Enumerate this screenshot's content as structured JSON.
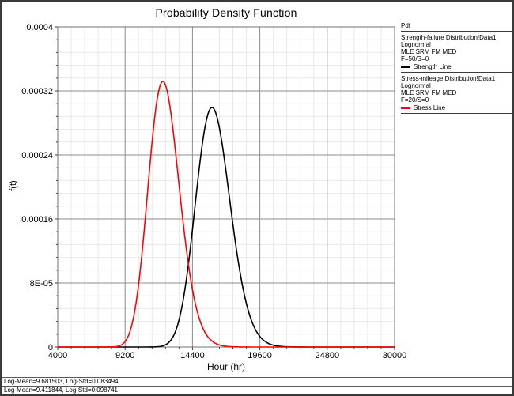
{
  "window": {
    "title": "Probability Density Function"
  },
  "chart_data": {
    "type": "line",
    "title": "Probability Density Function",
    "xlabel": "Hour (hr)",
    "ylabel": "f(t)",
    "xlim": [
      4000,
      30000
    ],
    "ylim": [
      0,
      0.0004
    ],
    "x_ticks": [
      4000,
      9200,
      14400,
      19600,
      24800,
      30000
    ],
    "x_tick_labels": [
      "4000",
      "9200",
      "14400",
      "19600",
      "24800",
      "30000"
    ],
    "y_ticks": [
      0,
      8e-05,
      0.00016,
      0.00024,
      0.00032,
      0.0004
    ],
    "y_tick_labels": [
      "0",
      "8E-05",
      "0.00016",
      "0.00024",
      "0.00032",
      "0.0004"
    ],
    "minor_divisions": 5,
    "grid": true,
    "legend_position": "top-right-outside",
    "colors": {
      "minor_grid": "#e8e8e8",
      "major_grid": "#8c8c8c",
      "plot_border": "#707070",
      "tick": "#3a3a3a"
    },
    "series": [
      {
        "name": "Strength Line",
        "distribution": "lognormal",
        "log_mean": 9.681503,
        "log_std": 0.083494,
        "color": "#000000",
        "peak_x": 15900,
        "peak_y": 0.0003
      },
      {
        "name": "Stress Line",
        "distribution": "lognormal",
        "log_mean": 9.411844,
        "log_std": 0.098741,
        "color": "#ff0000",
        "peak_x": 12110,
        "peak_y": 0.000334
      }
    ]
  },
  "legend": {
    "header": "Pdf",
    "entries": [
      {
        "lines": [
          "Strength-failure Distribution!Data1",
          "Lognormal",
          "MLE SRM FM MED",
          "F=50/S=0"
        ],
        "line_label": "Strength Line",
        "color": "#000000"
      },
      {
        "lines": [
          "Stress-mileage Distribution!Data1",
          "Lognormal",
          "MLE SRM FM MED",
          "F=20/S=0"
        ],
        "line_label": "Stress Line",
        "color": "#ff0000"
      }
    ]
  },
  "status_bar": {
    "lines": [
      "Log-Mean=9.681503, Log-Std=0.083494",
      "Log-Mean=9.411844, Log-Std=0.098741"
    ]
  }
}
